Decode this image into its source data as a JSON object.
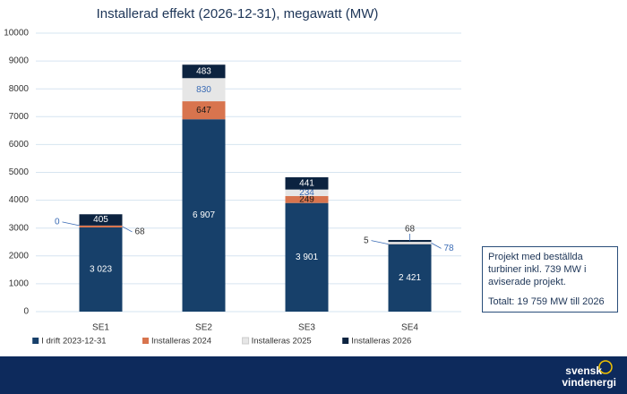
{
  "chart_data": {
    "type": "stacked_bar",
    "title": "Installerad effekt (2026-12-31), megawatt (MW)",
    "categories": [
      "SE1",
      "SE2",
      "SE3",
      "SE4"
    ],
    "series": [
      {
        "name": "I drift 2023-12-31",
        "color": "#17406a",
        "label_color": "#ffffff",
        "values": [
          3023,
          6907,
          3901,
          2421
        ],
        "value_labels": [
          "3 023",
          "6 907",
          "3 901",
          "2 421"
        ]
      },
      {
        "name": "Installeras 2024",
        "color": "#d8744e",
        "label_color": "#1a1a1a",
        "values": [
          68,
          647,
          249,
          5
        ]
      },
      {
        "name": "Installeras 2025",
        "color": "#e6e6e6",
        "label_color": "#3a6bb5",
        "values": [
          0,
          830,
          234,
          78
        ]
      },
      {
        "name": "Installeras 2026",
        "color": "#0c2340",
        "label_color": "#ffffff",
        "values": [
          405,
          483,
          441,
          68
        ]
      }
    ],
    "ylim": [
      0,
      10000
    ],
    "yticks": [
      0,
      1000,
      2000,
      3000,
      4000,
      5000,
      6000,
      7000,
      8000,
      9000,
      10000
    ],
    "grid": true,
    "legend": "bottom",
    "annotations": [
      "Projekt med beställda turbiner inkl. 739 MW i aviserade projekt.",
      "Totalt: 19 759 MW till 2026"
    ]
  },
  "footer": {
    "logo_lines": [
      "svensk",
      "vindenergi"
    ]
  }
}
